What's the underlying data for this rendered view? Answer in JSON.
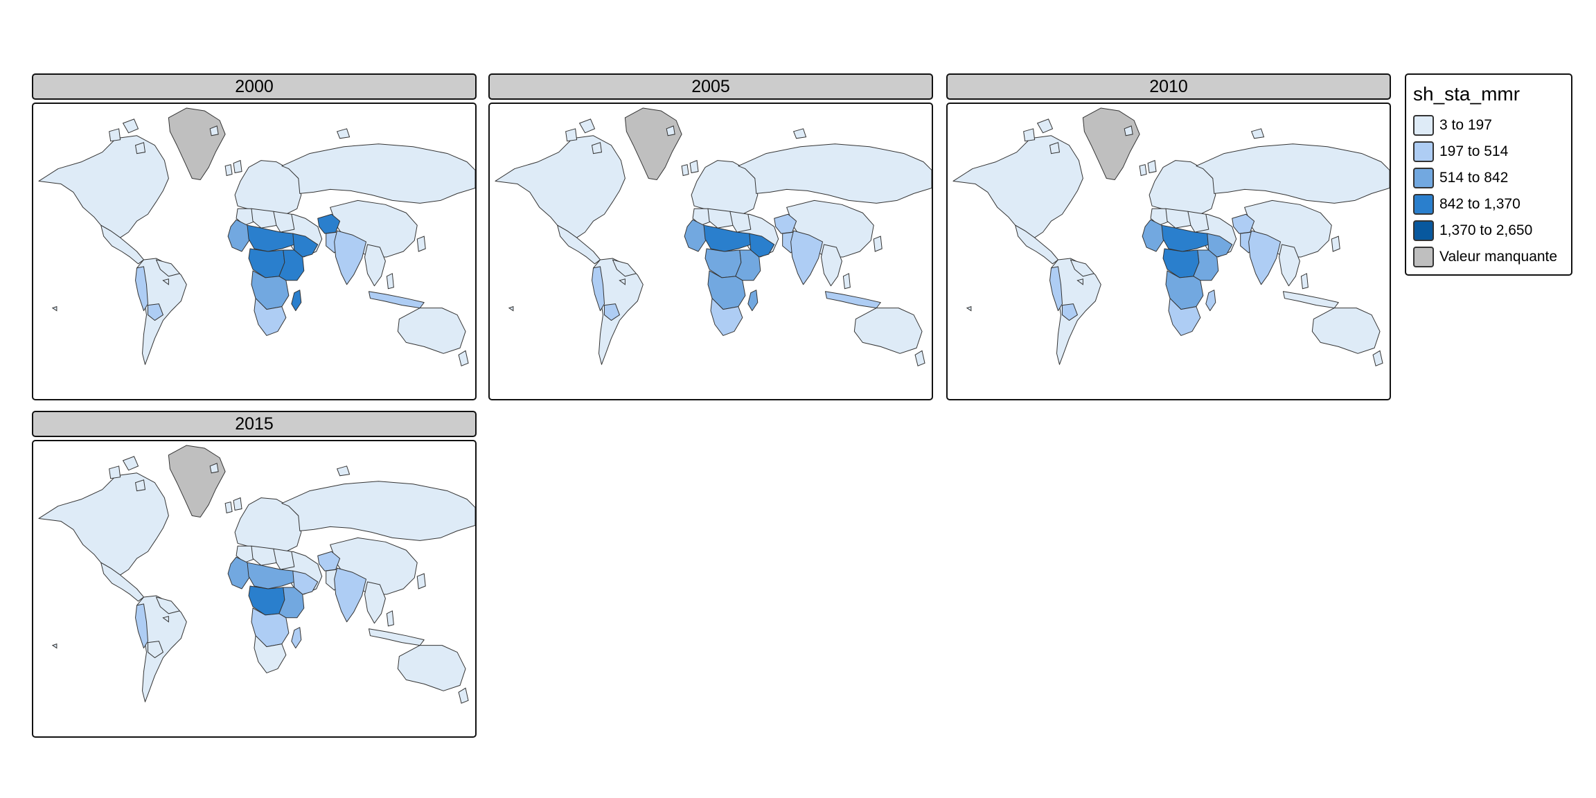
{
  "facets": [
    {
      "label": "2000",
      "levels": {
        "na": 0,
        "ca": 0,
        "sa": 0,
        "andes": 1,
        "bolivia": 1,
        "guyanas": 0,
        "eu": 0,
        "ru": 0,
        "cn": 0,
        "mideast": 0,
        "afghan": 3,
        "pak": 1,
        "india": 1,
        "sea": 0,
        "indo": 1,
        "aus": 0,
        "ma": 0,
        "ly": 0,
        "eg": 0,
        "wa": 2,
        "sahel": 3,
        "ca_af": 3,
        "horn": 3,
        "ea": 3,
        "sa_af": 2,
        "zaf": 1,
        "mada": 3,
        "greenland": "na"
      }
    },
    {
      "label": "2005",
      "levels": {
        "na": 0,
        "ca": 0,
        "sa": 0,
        "andes": 1,
        "bolivia": 1,
        "guyanas": 0,
        "eu": 0,
        "ru": 0,
        "cn": 0,
        "mideast": 0,
        "afghan": 1,
        "pak": 1,
        "india": 1,
        "sea": 0,
        "indo": 1,
        "aus": 0,
        "ma": 0,
        "ly": 0,
        "eg": 0,
        "wa": 2,
        "sahel": 3,
        "ca_af": 2,
        "horn": 3,
        "ea": 2,
        "sa_af": 2,
        "zaf": 1,
        "mada": 2,
        "greenland": "na"
      }
    },
    {
      "label": "2010",
      "levels": {
        "na": 0,
        "ca": 0,
        "sa": 0,
        "andes": 1,
        "bolivia": 1,
        "guyanas": 0,
        "eu": 0,
        "ru": 0,
        "cn": 0,
        "mideast": 0,
        "afghan": 1,
        "pak": 1,
        "india": 1,
        "sea": 0,
        "indo": 0,
        "aus": 0,
        "ma": 0,
        "ly": 0,
        "eg": 0,
        "wa": 2,
        "sahel": 3,
        "ca_af": 3,
        "horn": 2,
        "ea": 2,
        "sa_af": 2,
        "zaf": 1,
        "mada": 1,
        "greenland": "na"
      }
    },
    {
      "label": "2015",
      "levels": {
        "na": 0,
        "ca": 0,
        "sa": 0,
        "andes": 1,
        "bolivia": 0,
        "guyanas": 0,
        "eu": 0,
        "ru": 0,
        "cn": 0,
        "mideast": 0,
        "afghan": 1,
        "pak": 0,
        "india": 1,
        "sea": 0,
        "indo": 0,
        "aus": 0,
        "ma": 0,
        "ly": 0,
        "eg": 0,
        "wa": 2,
        "sahel": 2,
        "ca_af": 3,
        "horn": 1,
        "ea": 2,
        "sa_af": 1,
        "zaf": 0,
        "mada": 1,
        "greenland": "na"
      }
    }
  ],
  "legend": {
    "title": "sh_sta_mmr",
    "items": [
      {
        "label": "3 to 197",
        "color": "#deebf7"
      },
      {
        "label": "197 to 514",
        "color": "#aecdf4"
      },
      {
        "label": "514 to 842",
        "color": "#72a8e0"
      },
      {
        "label": "842 to 1,370",
        "color": "#2a7fcd"
      },
      {
        "label": "1,370 to 2,650",
        "color": "#08589e"
      },
      {
        "label": "Valeur manquante",
        "color": "#bfbfbf"
      }
    ]
  },
  "colors": {
    "border": "#333333",
    "missing": "#bfbfbf",
    "ocean": "#ffffff"
  }
}
